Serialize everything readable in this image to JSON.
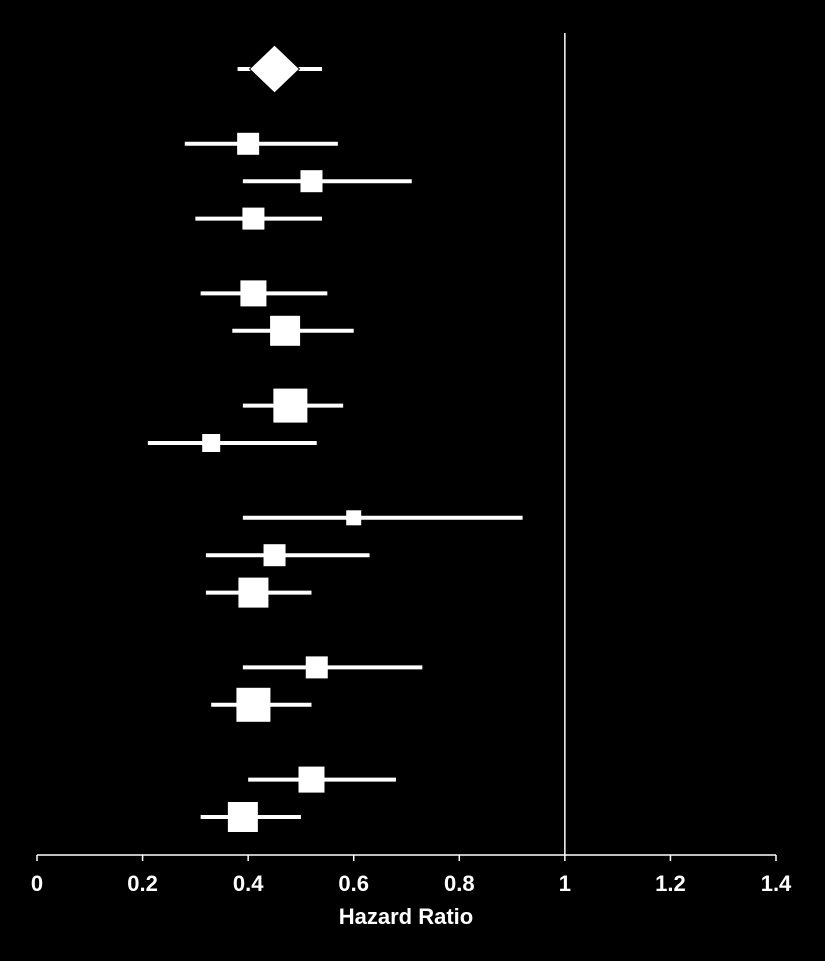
{
  "chart_data": {
    "type": "forest",
    "x_label": "Hazard Ratio",
    "xlim": [
      0,
      1.4
    ],
    "xticks": [
      0,
      0.2,
      0.4,
      0.6,
      0.8,
      1,
      1.2,
      1.4
    ],
    "reference_line": 1,
    "color": "#ffffff",
    "summary": {
      "estimate": 0.45,
      "lower": 0.38,
      "upper": 0.54
    },
    "estimates": [
      null,
      0.4,
      0.52,
      0.41,
      null,
      0.41,
      0.47,
      null,
      0.48,
      0.33,
      null,
      0.6,
      0.45,
      0.41,
      null,
      0.53,
      0.41,
      null,
      0.52,
      0.39
    ],
    "lower": [
      null,
      0.28,
      0.39,
      0.3,
      null,
      0.31,
      0.37,
      null,
      0.39,
      0.21,
      null,
      0.39,
      0.32,
      0.32,
      null,
      0.39,
      0.33,
      null,
      0.4,
      0.31
    ],
    "upper": [
      null,
      0.57,
      0.71,
      0.54,
      null,
      0.55,
      0.6,
      null,
      0.58,
      0.53,
      null,
      0.92,
      0.63,
      0.52,
      null,
      0.73,
      0.52,
      null,
      0.68,
      0.5
    ],
    "weights": [
      null,
      22,
      22,
      22,
      null,
      26,
      30,
      null,
      34,
      18,
      null,
      15,
      22,
      30,
      null,
      22,
      34,
      null,
      26,
      30
    ]
  }
}
